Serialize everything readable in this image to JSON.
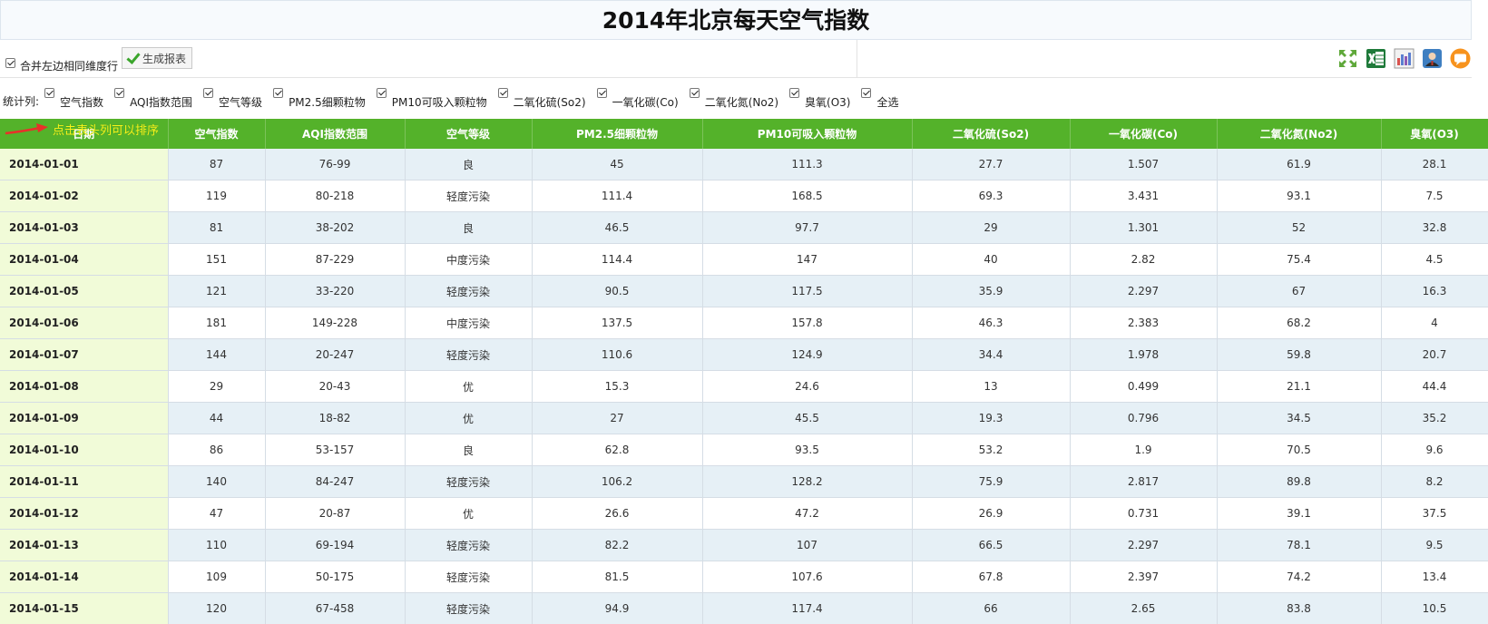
{
  "page": {
    "title": "2014年北京每天空气指数"
  },
  "toolbar": {
    "merge_label": "合并左边相同维度行",
    "merge_checked": true,
    "generate_button": "生成报表",
    "icons": [
      "fullscreen-icon",
      "excel-export-icon",
      "chart-icon",
      "user-profile-icon",
      "comment-icon"
    ]
  },
  "stats": {
    "lead_label": "统计列:",
    "items": [
      {
        "label": "空气指数",
        "checked": true
      },
      {
        "label": "AQI指数范围",
        "checked": true
      },
      {
        "label": "空气等级",
        "checked": true
      },
      {
        "label": "PM2.5细颗粒物",
        "checked": true
      },
      {
        "label": "PM10可吸入颗粒物",
        "checked": true
      },
      {
        "label": "二氧化硫(So2)",
        "checked": true
      },
      {
        "label": "一氧化碳(Co)",
        "checked": true
      },
      {
        "label": "二氧化氮(No2)",
        "checked": true
      },
      {
        "label": "臭氧(O3)",
        "checked": true
      },
      {
        "label": "全选",
        "checked": true
      }
    ]
  },
  "hint": {
    "text": "点击表头列可以排序"
  },
  "table": {
    "headers": [
      "日期",
      "空气指数",
      "AQI指数范围",
      "空气等级",
      "PM2.5细颗粒物",
      "PM10可吸入颗粒物",
      "二氧化硫(So2)",
      "一氧化碳(Co)",
      "二氧化氮(No2)",
      "臭氧(O3)"
    ],
    "rows": [
      [
        "2014-01-01",
        "87",
        "76-99",
        "良",
        "45",
        "111.3",
        "27.7",
        "1.507",
        "61.9",
        "28.1"
      ],
      [
        "2014-01-02",
        "119",
        "80-218",
        "轻度污染",
        "111.4",
        "168.5",
        "69.3",
        "3.431",
        "93.1",
        "7.5"
      ],
      [
        "2014-01-03",
        "81",
        "38-202",
        "良",
        "46.5",
        "97.7",
        "29",
        "1.301",
        "52",
        "32.8"
      ],
      [
        "2014-01-04",
        "151",
        "87-229",
        "中度污染",
        "114.4",
        "147",
        "40",
        "2.82",
        "75.4",
        "4.5"
      ],
      [
        "2014-01-05",
        "121",
        "33-220",
        "轻度污染",
        "90.5",
        "117.5",
        "35.9",
        "2.297",
        "67",
        "16.3"
      ],
      [
        "2014-01-06",
        "181",
        "149-228",
        "中度污染",
        "137.5",
        "157.8",
        "46.3",
        "2.383",
        "68.2",
        "4"
      ],
      [
        "2014-01-07",
        "144",
        "20-247",
        "轻度污染",
        "110.6",
        "124.9",
        "34.4",
        "1.978",
        "59.8",
        "20.7"
      ],
      [
        "2014-01-08",
        "29",
        "20-43",
        "优",
        "15.3",
        "24.6",
        "13",
        "0.499",
        "21.1",
        "44.4"
      ],
      [
        "2014-01-09",
        "44",
        "18-82",
        "优",
        "27",
        "45.5",
        "19.3",
        "0.796",
        "34.5",
        "35.2"
      ],
      [
        "2014-01-10",
        "86",
        "53-157",
        "良",
        "62.8",
        "93.5",
        "53.2",
        "1.9",
        "70.5",
        "9.6"
      ],
      [
        "2014-01-11",
        "140",
        "84-247",
        "轻度污染",
        "106.2",
        "128.2",
        "75.9",
        "2.817",
        "89.8",
        "8.2"
      ],
      [
        "2014-01-12",
        "47",
        "20-87",
        "优",
        "26.6",
        "47.2",
        "26.9",
        "0.731",
        "39.1",
        "37.5"
      ],
      [
        "2014-01-13",
        "110",
        "69-194",
        "轻度污染",
        "82.2",
        "107",
        "66.5",
        "2.297",
        "78.1",
        "9.5"
      ],
      [
        "2014-01-14",
        "109",
        "50-175",
        "轻度污染",
        "81.5",
        "107.6",
        "67.8",
        "2.397",
        "74.2",
        "13.4"
      ],
      [
        "2014-01-15",
        "120",
        "67-458",
        "轻度污染",
        "94.9",
        "117.4",
        "66",
        "2.65",
        "83.8",
        "10.5"
      ]
    ]
  },
  "colors": {
    "header_green": "#54b22a",
    "odd_row": "#e6f0f6",
    "date_column": "#f1fbd8",
    "hint_yellow": "#f7f31a",
    "arrow_red": "#e8302a"
  }
}
